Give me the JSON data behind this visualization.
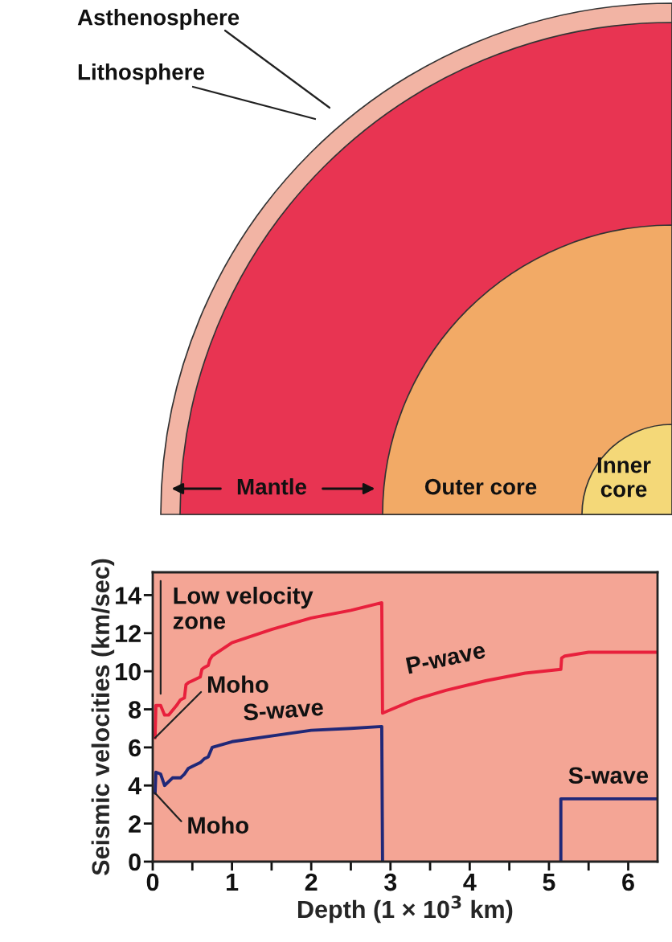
{
  "chart_data": [
    {
      "type": "other",
      "annotations": [
        "Asthenosphere",
        "Lithosphere",
        "Mantle",
        "Outer core",
        "Inner core"
      ]
    },
    {
      "type": "line",
      "xlabel": "Depth (1 × 10$^{3}$ km)",
      "ylabel": "Seismic velocities (km/sec)",
      "xlim": [
        0,
        6.37
      ],
      "ylim": [
        0,
        15.2
      ],
      "xticks": [
        0,
        {
          "value": 0.5,
          "label": null
        },
        1,
        {
          "value": 1.5,
          "label": null
        },
        2,
        {
          "value": 2.5,
          "label": null
        },
        3,
        {
          "value": 3.5,
          "label": null
        },
        4,
        {
          "value": 4.5,
          "label": null
        },
        5,
        {
          "value": 5.5,
          "label": null
        },
        6
      ],
      "yticks": [
        0,
        2,
        4,
        6,
        8,
        10,
        12,
        14
      ],
      "grid": false,
      "legend": false,
      "marker": "none",
      "line_style": "solid",
      "series": [
        {
          "name": "P-wave",
          "color": "#e8203c",
          "x": [
            0.03,
            0.04,
            0.1,
            0.15,
            0.2,
            0.3,
            0.35,
            0.4,
            0.42,
            0.45,
            0.5,
            0.6,
            0.62,
            0.65,
            0.7,
            0.72,
            0.75,
            1.0,
            1.5,
            2.0,
            2.5,
            2.89,
            2.9,
            3.3,
            3.7,
            4.2,
            4.7,
            5.15,
            5.16,
            5.2,
            5.5,
            6.37
          ],
          "values": [
            6.5,
            8.2,
            8.2,
            7.7,
            7.7,
            8.2,
            8.5,
            8.6,
            9.3,
            9.4,
            9.5,
            9.7,
            10.1,
            10.2,
            10.3,
            10.6,
            10.8,
            11.5,
            12.2,
            12.8,
            13.2,
            13.6,
            7.8,
            8.5,
            9.0,
            9.5,
            9.9,
            10.1,
            10.7,
            10.8,
            11.0,
            11.0
          ]
        },
        {
          "name": "S-wave",
          "color": "#202878",
          "x": [
            0.03,
            0.04,
            0.1,
            0.15,
            0.25,
            0.35,
            0.4,
            0.45,
            0.5,
            0.6,
            0.65,
            0.7,
            0.75,
            1.0,
            1.5,
            2.0,
            2.5,
            2.89,
            2.9
          ],
          "values": [
            3.6,
            4.7,
            4.6,
            4.0,
            4.4,
            4.4,
            4.6,
            4.9,
            5.0,
            5.2,
            5.4,
            5.5,
            6.0,
            6.3,
            6.6,
            6.9,
            7.0,
            7.1,
            0
          ]
        },
        {
          "name": "S-wave",
          "color": "#202878",
          "x": [
            5.15,
            5.15,
            6.37
          ],
          "values": [
            0,
            3.3,
            3.3
          ]
        }
      ],
      "annotations": [
        "Low velocity zone",
        {
          "text": "Moho",
          "x": 0.03,
          "y": 6.5
        },
        {
          "text": "Moho",
          "x": 0.03,
          "y": 3.6
        }
      ]
    }
  ]
}
